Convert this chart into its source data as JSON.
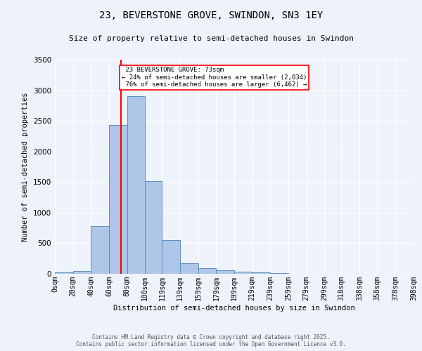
{
  "title_line1": "23, BEVERSTONE GROVE, SWINDON, SN3 1EY",
  "title_line2": "Size of property relative to semi-detached houses in Swindon",
  "xlabel": "Distribution of semi-detached houses by size in Swindon",
  "ylabel": "Number of semi-detached properties",
  "footer_line1": "Contains HM Land Registry data © Crown copyright and database right 2025.",
  "footer_line2": "Contains public sector information licensed under the Open Government Licence v3.0.",
  "property_label": "23 BEVERSTONE GROVE: 73sqm",
  "smaller_pct": "24% of semi-detached houses are smaller (2,034)",
  "larger_pct": "76% of semi-detached houses are larger (6,462)",
  "property_size": 73,
  "bin_edges": [
    0,
    20,
    40,
    60,
    80,
    100,
    119,
    139,
    159,
    179,
    199,
    219,
    239,
    259,
    279,
    299,
    318,
    338,
    358,
    378,
    398
  ],
  "bin_labels": [
    "0sqm",
    "20sqm",
    "40sqm",
    "60sqm",
    "80sqm",
    "100sqm",
    "119sqm",
    "139sqm",
    "159sqm",
    "179sqm",
    "199sqm",
    "219sqm",
    "239sqm",
    "259sqm",
    "279sqm",
    "299sqm",
    "318sqm",
    "338sqm",
    "358sqm",
    "378sqm",
    "398sqm"
  ],
  "counts": [
    25,
    50,
    780,
    2430,
    2900,
    1510,
    550,
    175,
    90,
    55,
    30,
    20,
    10,
    5,
    3,
    2,
    2,
    1,
    1,
    0
  ],
  "bar_color": "#aec6e8",
  "bar_edge_color": "#5a8fc2",
  "redline_color": "red",
  "bg_color": "#eef2fb",
  "grid_color": "white",
  "ylim": [
    0,
    3500
  ],
  "yticks": [
    0,
    500,
    1000,
    1500,
    2000,
    2500,
    3000,
    3500
  ]
}
